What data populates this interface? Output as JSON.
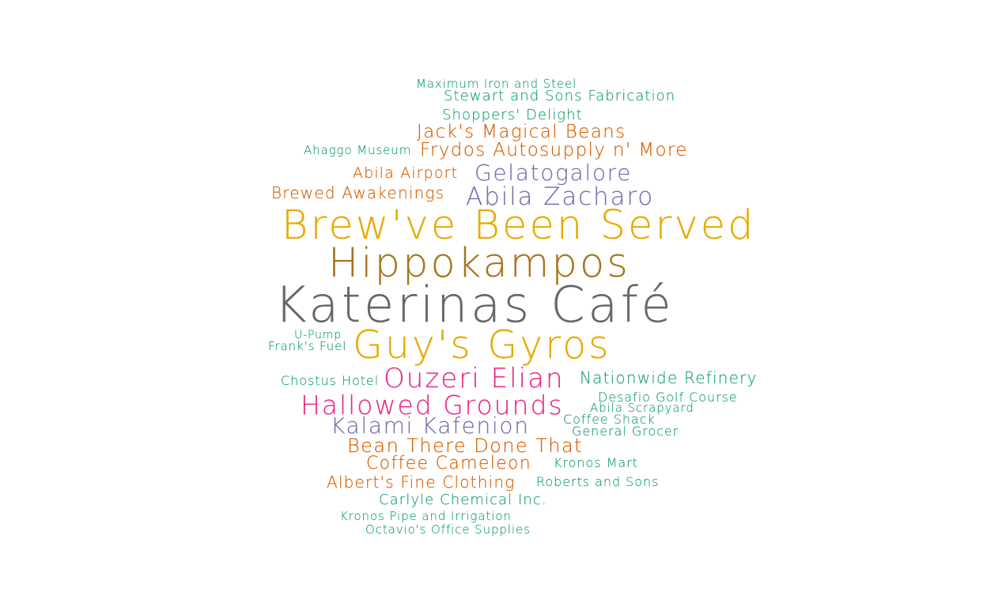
{
  "words": [
    {
      "id": "maximum-iron-and-steel",
      "text": "Maximum Iron and Steel",
      "weight": 1,
      "color_group": "teal"
    },
    {
      "id": "stewart-and-sons-fabrication",
      "text": "Stewart and Sons Fabrication",
      "weight": 2,
      "color_group": "teal"
    },
    {
      "id": "shoppers-delight",
      "text": "Shoppers' Delight",
      "weight": 2,
      "color_group": "teal"
    },
    {
      "id": "jacks-magical-beans",
      "text": "Jack's Magical Beans",
      "weight": 3,
      "color_group": "orange"
    },
    {
      "id": "ahaggo-museum",
      "text": "Ahaggo Museum",
      "weight": 1,
      "color_group": "teal"
    },
    {
      "id": "frydos-autosupply",
      "text": "Frydos Autosupply n' More",
      "weight": 3,
      "color_group": "orange"
    },
    {
      "id": "abila-airport",
      "text": "Abila Airport",
      "weight": 2,
      "color_group": "orange"
    },
    {
      "id": "gelatogalore",
      "text": "Gelatogalore",
      "weight": 4,
      "color_group": "purple"
    },
    {
      "id": "brewed-awakenings",
      "text": "Brewed Awakenings",
      "weight": 2,
      "color_group": "orange"
    },
    {
      "id": "abila-zacharo",
      "text": "Abila Zacharo",
      "weight": 4,
      "color_group": "purple"
    },
    {
      "id": "brewve-been-served",
      "text": "Brew've Been Served",
      "weight": 8,
      "color_group": "gold"
    },
    {
      "id": "hippokampos",
      "text": "Hippokampos",
      "weight": 8,
      "color_group": "brown"
    },
    {
      "id": "katerinas-cafe",
      "text": "Katerinas Café",
      "weight": 10,
      "color_group": "gray"
    },
    {
      "id": "u-pump",
      "text": "U-Pump",
      "weight": 1,
      "color_group": "teal"
    },
    {
      "id": "franks-fuel",
      "text": "Frank's Fuel",
      "weight": 1,
      "color_group": "teal"
    },
    {
      "id": "guys-gyros",
      "text": "Guy's Gyros",
      "weight": 8,
      "color_group": "gold"
    },
    {
      "id": "chostus-hotel",
      "text": "Chostus Hotel",
      "weight": 1,
      "color_group": "teal"
    },
    {
      "id": "ouzeri-elian",
      "text": "Ouzeri Elian",
      "weight": 5,
      "color_group": "pink"
    },
    {
      "id": "nationwide-refinery",
      "text": "Nationwide Refinery",
      "weight": 2,
      "color_group": "teal"
    },
    {
      "id": "desafio-golf-course",
      "text": "Desafio Golf Course",
      "weight": 1,
      "color_group": "teal"
    },
    {
      "id": "hallowed-grounds",
      "text": "Hallowed Grounds",
      "weight": 5,
      "color_group": "pink"
    },
    {
      "id": "abila-scrapyard",
      "text": "Abila Scrapyard",
      "weight": 1,
      "color_group": "teal"
    },
    {
      "id": "coffee-shack",
      "text": "Coffee Shack",
      "weight": 1,
      "color_group": "teal"
    },
    {
      "id": "kalami-kafenion",
      "text": "Kalami Kafenion",
      "weight": 4,
      "color_group": "purple"
    },
    {
      "id": "general-grocer",
      "text": "General Grocer",
      "weight": 1,
      "color_group": "teal"
    },
    {
      "id": "bean-there-done-that",
      "text": "Bean There Done That",
      "weight": 3,
      "color_group": "orange"
    },
    {
      "id": "coffee-cameleon",
      "text": "Coffee Cameleon",
      "weight": 3,
      "color_group": "orange"
    },
    {
      "id": "kronos-mart",
      "text": "Kronos Mart",
      "weight": 1,
      "color_group": "teal"
    },
    {
      "id": "alberts-fine-clothing",
      "text": "Albert's Fine Clothing",
      "weight": 2,
      "color_group": "orange"
    },
    {
      "id": "roberts-and-sons",
      "text": "Roberts and Sons",
      "weight": 1,
      "color_group": "teal"
    },
    {
      "id": "carlyle-chemical",
      "text": "Carlyle Chemical Inc.",
      "weight": 2,
      "color_group": "teal"
    },
    {
      "id": "kronos-pipe-and-irrigation",
      "text": "Kronos Pipe and Irrigation",
      "weight": 1,
      "color_group": "teal"
    },
    {
      "id": "octavios-office-supplies",
      "text": "Octavio's Office Supplies",
      "weight": 1,
      "color_group": "teal"
    }
  ],
  "colors": {
    "teal": "#1b9e77",
    "orange": "#d95f02",
    "purple": "#7570b3",
    "pink": "#e7298a",
    "gold": "#e6ab02",
    "brown": "#a6761d",
    "gray": "#666666"
  }
}
